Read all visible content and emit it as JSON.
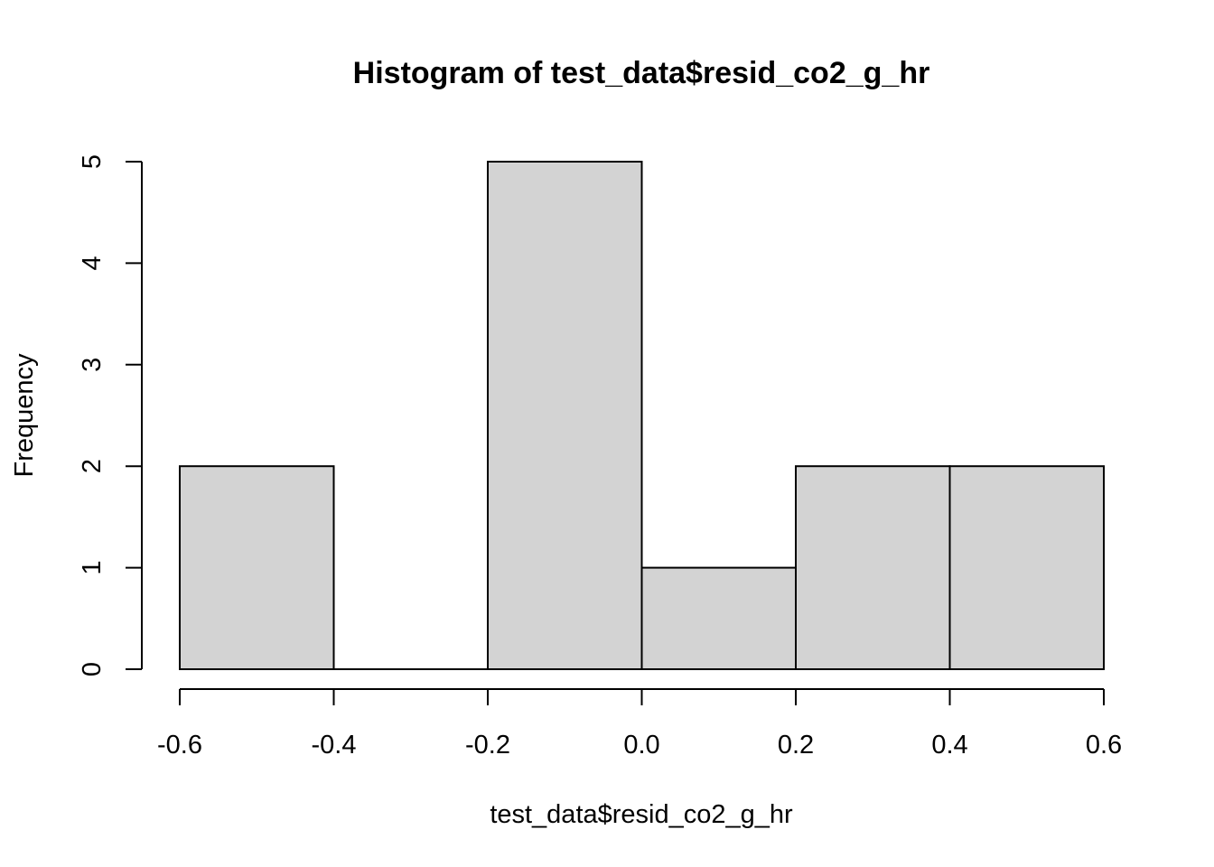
{
  "chart_data": {
    "type": "bar",
    "title": "Histogram of test_data$resid_co2_g_hr",
    "xlabel": "test_data$resid_co2_g_hr",
    "ylabel": "Frequency",
    "bins": [
      {
        "start": -0.6,
        "end": -0.4,
        "count": 2
      },
      {
        "start": -0.4,
        "end": -0.2,
        "count": 0
      },
      {
        "start": -0.2,
        "end": 0.0,
        "count": 5
      },
      {
        "start": 0.0,
        "end": 0.2,
        "count": 1
      },
      {
        "start": 0.2,
        "end": 0.4,
        "count": 2
      },
      {
        "start": 0.4,
        "end": 0.6,
        "count": 2
      }
    ],
    "xlim": [
      -0.6,
      0.6
    ],
    "ylim": [
      0,
      5
    ],
    "x_ticks": [
      -0.6,
      -0.4,
      -0.2,
      0.0,
      0.2,
      0.4,
      0.6
    ],
    "x_tick_labels": [
      "-0.6",
      "-0.4",
      "-0.2",
      "0.0",
      "0.2",
      "0.4",
      "0.6"
    ],
    "y_ticks": [
      0,
      1,
      2,
      3,
      4,
      5
    ],
    "y_tick_labels": [
      "0",
      "1",
      "2",
      "3",
      "4",
      "5"
    ],
    "bar_fill": "#d3d3d3",
    "bar_stroke": "#000000",
    "grid": false
  }
}
